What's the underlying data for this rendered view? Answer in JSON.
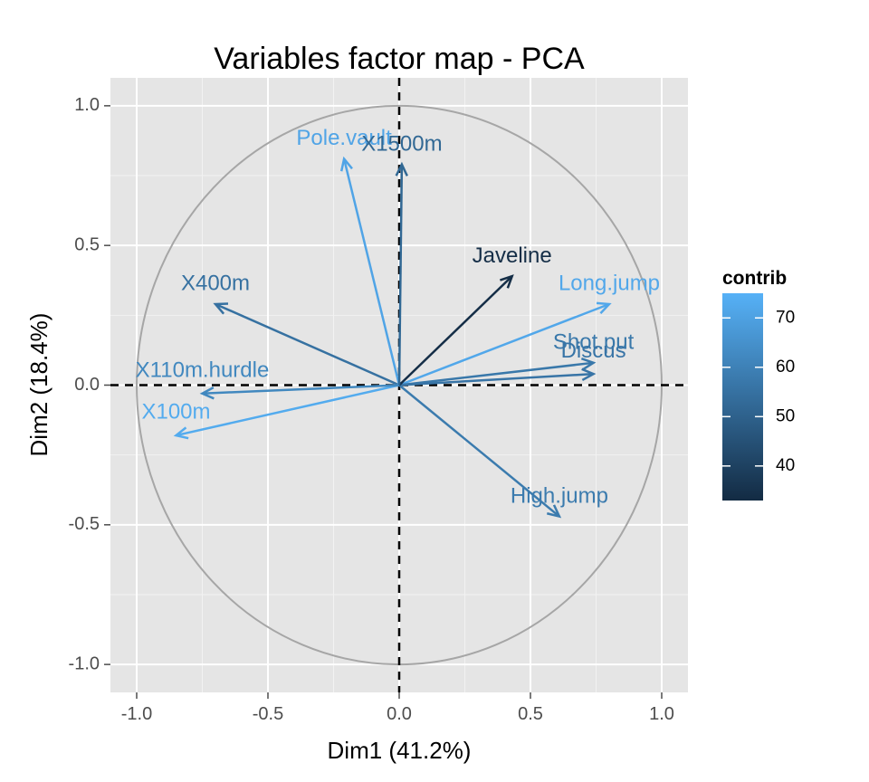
{
  "chart_data": {
    "type": "scatter",
    "title": "Variables factor map - PCA",
    "xlabel": "Dim1 (41.2%)",
    "ylabel": "Dim2 (18.4%)",
    "xlim": [
      -1.1,
      1.1
    ],
    "ylim": [
      -1.1,
      1.1
    ],
    "x_ticks": [
      -1.0,
      -0.5,
      0.0,
      0.5,
      1.0
    ],
    "x_tick_labels": [
      "-1.0",
      "-0.5",
      "0.0",
      "0.5",
      "1.0"
    ],
    "y_ticks": [
      -1.0,
      -0.5,
      0.0,
      0.5,
      1.0
    ],
    "y_tick_labels": [
      "-1.0",
      "-0.5",
      "0.0",
      "0.5",
      "1.0"
    ],
    "grid": true,
    "background": "#e5e5e5",
    "circle_radius": 1.0,
    "legend": {
      "title": "contrib",
      "position": "right",
      "range": [
        33,
        75
      ],
      "ticks": [
        40,
        50,
        60,
        70
      ],
      "tick_labels": [
        "40",
        "50",
        "60",
        "70"
      ],
      "color_low": "#132b43",
      "color_high": "#56b1f7"
    },
    "variables": [
      {
        "name": "X100m",
        "x": -0.85,
        "y": -0.18,
        "contrib": 73,
        "label_x": -0.85,
        "label_y": -0.1
      },
      {
        "name": "Long.jump",
        "x": 0.8,
        "y": 0.29,
        "contrib": 72,
        "label_x": 0.8,
        "label_y": 0.36
      },
      {
        "name": "Shot.put",
        "x": 0.74,
        "y": 0.08,
        "contrib": 57,
        "label_x": 0.74,
        "label_y": 0.15
      },
      {
        "name": "High.jump",
        "x": 0.61,
        "y": -0.47,
        "contrib": 58,
        "label_x": 0.61,
        "label_y": -0.4
      },
      {
        "name": "X400m",
        "x": -0.7,
        "y": 0.29,
        "contrib": 55,
        "label_x": -0.7,
        "label_y": 0.36
      },
      {
        "name": "X110m.hurdle",
        "x": -0.75,
        "y": -0.03,
        "contrib": 62,
        "label_x": -0.75,
        "label_y": 0.05
      },
      {
        "name": "Discus",
        "x": 0.74,
        "y": 0.04,
        "contrib": 56,
        "label_x": 0.74,
        "label_y": 0.12
      },
      {
        "name": "Pole.vault",
        "x": -0.21,
        "y": 0.81,
        "contrib": 71,
        "label_x": -0.21,
        "label_y": 0.88
      },
      {
        "name": "Javeline",
        "x": 0.43,
        "y": 0.39,
        "contrib": 34,
        "label_x": 0.43,
        "label_y": 0.46
      },
      {
        "name": "X1500m",
        "x": 0.01,
        "y": 0.79,
        "contrib": 52,
        "label_x": 0.01,
        "label_y": 0.86
      }
    ]
  }
}
